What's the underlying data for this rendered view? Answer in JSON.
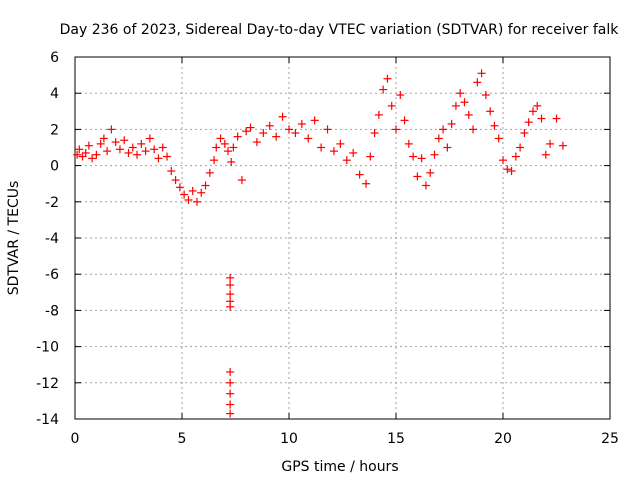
{
  "chart_data": {
    "type": "scatter",
    "title": "Day 236 of 2023, Sidereal Day-to-day VTEC variation (SDTVAR) for receiver falk",
    "xlabel": "GPS time / hours",
    "ylabel": "SDTVAR / TECUs",
    "xlim": [
      0,
      25
    ],
    "ylim": [
      -14,
      6
    ],
    "xticks": [
      0,
      5,
      10,
      15,
      20,
      25
    ],
    "yticks": [
      -14,
      -12,
      -10,
      -8,
      -6,
      -4,
      -2,
      0,
      2,
      4,
      6
    ],
    "grid": true,
    "marker": "+",
    "series_color": "#ff0000",
    "series": [
      {
        "name": "SDTVAR",
        "x": [
          0.1,
          0.2,
          0.35,
          0.5,
          0.65,
          0.8,
          1.0,
          1.2,
          1.35,
          1.5,
          1.7,
          1.9,
          2.1,
          2.3,
          2.5,
          2.7,
          2.9,
          3.1,
          3.3,
          3.5,
          3.7,
          3.9,
          4.1,
          4.3,
          4.5,
          4.7,
          4.9,
          5.1,
          5.3,
          5.5,
          5.7,
          5.9,
          6.1,
          6.3,
          6.5,
          6.6,
          6.8,
          7.0,
          7.15,
          7.3,
          7.4,
          7.6,
          7.8,
          8.0,
          8.2,
          8.5,
          8.8,
          9.1,
          9.4,
          9.7,
          10.0,
          10.3,
          10.6,
          10.9,
          11.2,
          11.5,
          11.8,
          12.1,
          12.4,
          12.7,
          13.0,
          13.3,
          13.6,
          13.8,
          14.0,
          14.2,
          14.4,
          14.6,
          14.8,
          15.0,
          15.2,
          15.4,
          15.6,
          15.8,
          16.0,
          16.2,
          16.4,
          16.6,
          16.8,
          17.0,
          17.2,
          17.4,
          17.6,
          17.8,
          18.0,
          18.2,
          18.4,
          18.6,
          18.8,
          19.0,
          19.2,
          19.4,
          19.6,
          19.8,
          20.0,
          20.2,
          20.4,
          20.6,
          20.8,
          21.0,
          21.2,
          21.4,
          21.6,
          21.8,
          22.0,
          22.2,
          22.5,
          22.8,
          7.25,
          7.25,
          7.25,
          7.25,
          7.25,
          7.25,
          7.25,
          7.25,
          7.25,
          7.25
        ],
        "y": [
          0.6,
          0.9,
          0.5,
          0.7,
          1.1,
          0.4,
          0.6,
          1.2,
          1.5,
          0.8,
          2.0,
          1.3,
          0.9,
          1.4,
          0.7,
          1.0,
          0.6,
          1.2,
          0.8,
          1.5,
          0.9,
          0.4,
          1.0,
          0.5,
          -0.3,
          -0.8,
          -1.2,
          -1.6,
          -1.9,
          -1.4,
          -2.0,
          -1.5,
          -1.1,
          -0.4,
          0.3,
          1.0,
          1.5,
          1.2,
          0.8,
          0.2,
          1.0,
          1.6,
          -0.8,
          1.9,
          2.1,
          1.3,
          1.8,
          2.2,
          1.6,
          2.7,
          2.0,
          1.8,
          2.3,
          1.5,
          2.5,
          1.0,
          2.0,
          0.8,
          1.2,
          0.3,
          0.7,
          -0.5,
          -1.0,
          0.5,
          1.8,
          2.8,
          4.2,
          4.8,
          3.3,
          2.0,
          3.9,
          2.5,
          1.2,
          0.5,
          -0.6,
          0.4,
          -1.1,
          -0.4,
          0.6,
          1.5,
          2.0,
          1.0,
          2.3,
          3.3,
          4.0,
          3.5,
          2.8,
          2.0,
          4.6,
          5.1,
          3.9,
          3.0,
          2.2,
          1.5,
          0.3,
          -0.2,
          -0.3,
          0.5,
          1.0,
          1.8,
          2.4,
          3.0,
          3.3,
          2.6,
          0.6,
          1.2,
          2.6,
          1.1,
          -6.2,
          -6.6,
          -7.1,
          -7.5,
          -7.8,
          -11.4,
          -12.0,
          -12.6,
          -13.2,
          -13.7
        ]
      }
    ]
  }
}
